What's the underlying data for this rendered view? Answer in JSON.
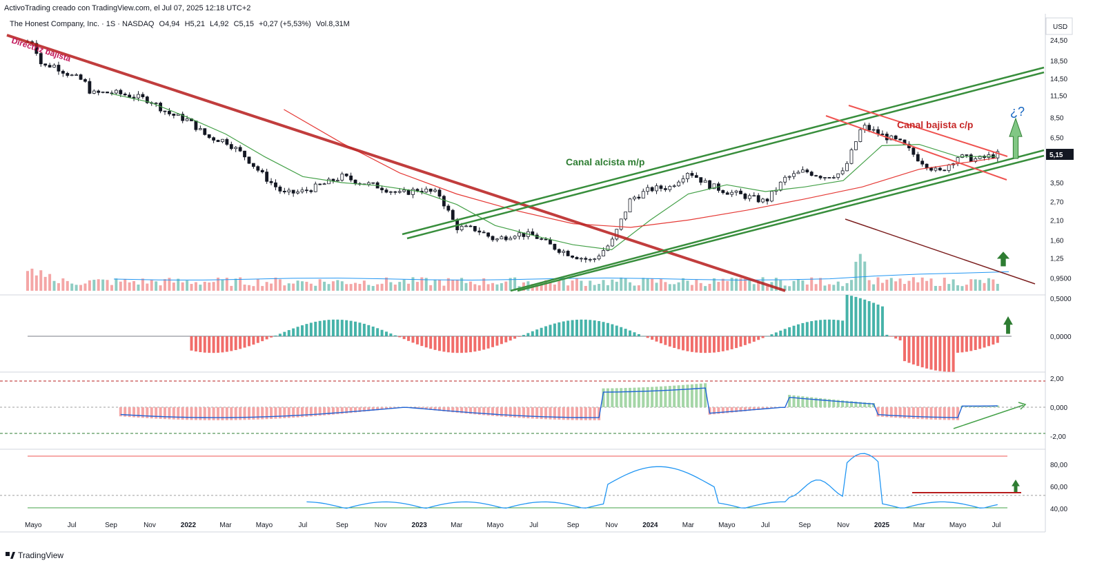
{
  "header": {
    "credit": "ActivoTrading creado con TradingView.com, el Jul 07, 2025 12:18 UTC+2",
    "symbol": "The Honest Company, Inc. · 1S · NASDAQ",
    "open": "O4,94",
    "high": "H5,21",
    "low": "L4,92",
    "close": "C5,15",
    "change": "+0,27 (+5,53%)",
    "volume": "Vol.8,31M"
  },
  "footer": {
    "brand": "TradingView"
  },
  "chart_data": [
    {
      "type": "candlestick",
      "name": "price",
      "currency": "USD",
      "scale": "log",
      "ylim": [
        0.8,
        28
      ],
      "y_ticks": [
        "24,50",
        "18,50",
        "14,50",
        "11,50",
        "8,50",
        "6,50",
        "5,15",
        "3,50",
        "2,70",
        "2,10",
        "1,60",
        "1,25",
        "0,9500"
      ],
      "y_tick_values": [
        24.5,
        18.5,
        14.5,
        11.5,
        8.5,
        6.5,
        5.15,
        3.5,
        2.7,
        2.1,
        1.6,
        1.25,
        0.95
      ],
      "last_price": "5,15",
      "x_ticks": [
        "Mayo",
        "Jul",
        "Sep",
        "Nov",
        "2022",
        "Mar",
        "Mayo",
        "Jul",
        "Sep",
        "Nov",
        "2023",
        "Mar",
        "Mayo",
        "Jul",
        "Sep",
        "Nov",
        "2024",
        "Mar",
        "Mayo",
        "Jul",
        "Sep",
        "Nov",
        "2025",
        "Mar",
        "Mayo",
        "Jul"
      ],
      "x_tick_values": [
        "2021-05",
        "2021-07",
        "2021-09",
        "2021-11",
        "2022-01",
        "2022-03",
        "2022-05",
        "2022-07",
        "2022-09",
        "2022-11",
        "2023-01",
        "2023-03",
        "2023-05",
        "2023-07",
        "2023-09",
        "2023-11",
        "2024-01",
        "2024-03",
        "2024-05",
        "2024-07",
        "2024-09",
        "2024-11",
        "2025-01",
        "2025-03",
        "2025-05",
        "2025-07"
      ],
      "close_path": [
        [
          "2021-05",
          24
        ],
        [
          "2021-05-15",
          17
        ],
        [
          "2021-06",
          17.5
        ],
        [
          "2021-07",
          15
        ],
        [
          "2021-07-20",
          14
        ],
        [
          "2021-08",
          11.8
        ],
        [
          "2021-09",
          12
        ],
        [
          "2021-10",
          11.5
        ],
        [
          "2021-11",
          10.8
        ],
        [
          "2021-12",
          9
        ],
        [
          "2022-01",
          8.2
        ],
        [
          "2022-02",
          6.5
        ],
        [
          "2022-03",
          6.2
        ],
        [
          "2022-04",
          5
        ],
        [
          "2022-05",
          3.8
        ],
        [
          "2022-06",
          3
        ],
        [
          "2022-07",
          3.1
        ],
        [
          "2022-08",
          3.4
        ],
        [
          "2022-09",
          3.8
        ],
        [
          "2022-10",
          3.5
        ],
        [
          "2022-11",
          3.3
        ],
        [
          "2022-12",
          3.0
        ],
        [
          "2023-01",
          3.2
        ],
        [
          "2023-02",
          3.0
        ],
        [
          "2023-03",
          1.9
        ],
        [
          "2023-04",
          1.85
        ],
        [
          "2023-05",
          1.6
        ],
        [
          "2023-06",
          1.75
        ],
        [
          "2023-07",
          1.7
        ],
        [
          "2023-08",
          1.45
        ],
        [
          "2023-09",
          1.3
        ],
        [
          "2023-10",
          1.2
        ],
        [
          "2023-11",
          1.55
        ],
        [
          "2023-12",
          2.8
        ],
        [
          "2024-01",
          3.2
        ],
        [
          "2024-02",
          3.3
        ],
        [
          "2024-03",
          4.1
        ],
        [
          "2024-04",
          3.4
        ],
        [
          "2024-05",
          3.1
        ],
        [
          "2024-06",
          2.9
        ],
        [
          "2024-07",
          2.7
        ],
        [
          "2024-08",
          3.7
        ],
        [
          "2024-09",
          4.1
        ],
        [
          "2024-10",
          3.8
        ],
        [
          "2024-11",
          4.0
        ],
        [
          "2024-12",
          7.6
        ],
        [
          "2025-01",
          6.7
        ],
        [
          "2025-02",
          6.0
        ],
        [
          "2025-03",
          4.8
        ],
        [
          "2025-04",
          4.0
        ],
        [
          "2025-05",
          5.0
        ],
        [
          "2025-06",
          4.8
        ],
        [
          "2025-07",
          5.15
        ]
      ],
      "sma_green": [
        [
          "2021-09",
          11.8
        ],
        [
          "2021-11",
          10.5
        ],
        [
          "2022-01",
          8.5
        ],
        [
          "2022-03",
          6.8
        ],
        [
          "2022-05",
          5.0
        ],
        [
          "2022-07",
          3.8
        ],
        [
          "2022-09",
          3.5
        ],
        [
          "2022-11",
          3.35
        ],
        [
          "2023-01",
          3.1
        ],
        [
          "2023-03",
          2.6
        ],
        [
          "2023-05",
          1.95
        ],
        [
          "2023-07",
          1.7
        ],
        [
          "2023-09",
          1.5
        ],
        [
          "2023-11",
          1.4
        ],
        [
          "2024-01",
          2.1
        ],
        [
          "2024-03",
          3.0
        ],
        [
          "2024-05",
          3.4
        ],
        [
          "2024-07",
          3.1
        ],
        [
          "2024-09",
          3.3
        ],
        [
          "2024-11",
          3.6
        ],
        [
          "2025-01",
          5.8
        ],
        [
          "2025-03",
          5.9
        ],
        [
          "2025-05",
          5.0
        ],
        [
          "2025-07",
          5.0
        ]
      ],
      "sma_red": [
        [
          "2022-06",
          9.5
        ],
        [
          "2022-09",
          6.0
        ],
        [
          "2022-12",
          4.0
        ],
        [
          "2023-03",
          3.0
        ],
        [
          "2023-06",
          2.4
        ],
        [
          "2023-09",
          2.0
        ],
        [
          "2023-12",
          1.9
        ],
        [
          "2024-03",
          2.1
        ],
        [
          "2024-06",
          2.4
        ],
        [
          "2024-09",
          2.8
        ],
        [
          "2024-12",
          3.3
        ],
        [
          "2025-03",
          4.2
        ],
        [
          "2025-07",
          4.9
        ]
      ],
      "annotations": [
        {
          "text": "Directriz bajista",
          "color": "#c2185b"
        },
        {
          "text": "Canal alcista m/p",
          "color": "#2e7d32"
        },
        {
          "text": "Canal bajista c/p",
          "color": "#c62828"
        },
        {
          "text": "¿?",
          "color": "#1565c0"
        }
      ]
    },
    {
      "type": "bar",
      "name": "volume",
      "note": "histogram at bottom of price pane with moving average"
    },
    {
      "type": "bar",
      "name": "oscillator_1",
      "y_ticks": [
        "0,5000",
        "0,0000"
      ],
      "y_tick_values": [
        0.5,
        0
      ]
    },
    {
      "type": "bar",
      "name": "oscillator_2",
      "y_ticks": [
        "2,00",
        "0,000",
        "-2,00"
      ],
      "y_tick_values": [
        2,
        0,
        -2
      ]
    },
    {
      "type": "line",
      "name": "oscillator_3",
      "y_ticks": [
        "80,00",
        "60,00",
        "40,00"
      ],
      "y_tick_values": [
        80,
        60,
        40
      ]
    }
  ]
}
